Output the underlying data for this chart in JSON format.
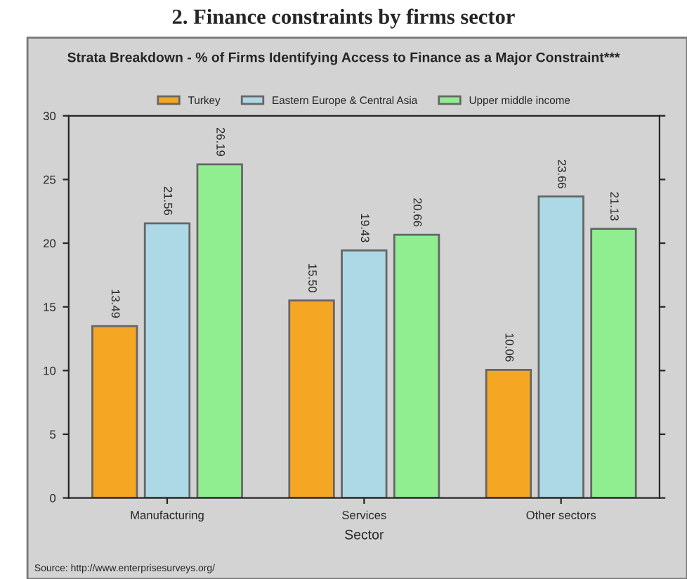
{
  "chart_data": {
    "type": "bar",
    "title": "2. Finance constraints by firms sector",
    "subtitle": "Strata Breakdown - % of Firms Identifying Access to Finance as a Major Constraint***",
    "xlabel": "Sector",
    "categories": [
      "Manufacturing",
      "Services",
      "Other sectors"
    ],
    "series": [
      {
        "name": "Turkey",
        "color": "#f5a623",
        "values": [
          13.49,
          15.5,
          10.06
        ],
        "value_labels": [
          "13.49",
          "15.50",
          "10.06"
        ]
      },
      {
        "name": "Eastern Europe & Central Asia",
        "color": "#add8e6",
        "values": [
          21.56,
          19.43,
          23.66
        ],
        "value_labels": [
          "21.56",
          "19.43",
          "23.66"
        ]
      },
      {
        "name": "Upper middle income",
        "color": "#90ee90",
        "values": [
          26.19,
          20.66,
          21.13
        ],
        "value_labels": [
          "26.19",
          "20.66",
          "21.13"
        ]
      }
    ],
    "ylim": [
      0,
      30
    ],
    "yticks": [
      0,
      5,
      10,
      15,
      20,
      25,
      30
    ],
    "legend": "top",
    "grid": false,
    "annotations": [
      "Source: http://www.enterprisesurveys.org/"
    ]
  }
}
